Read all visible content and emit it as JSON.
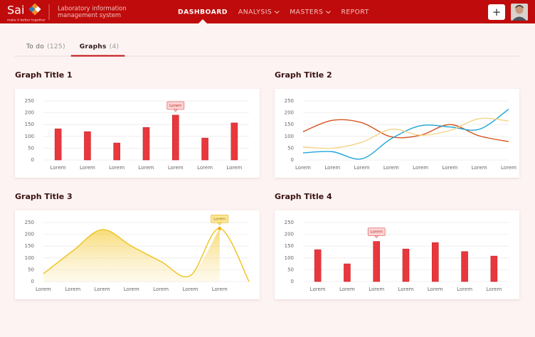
{
  "header": {
    "logo": "Sai",
    "tagline": "make it better together",
    "system_name": [
      "Laboratory information",
      "management system"
    ],
    "nav": [
      {
        "label": "DASHBOARD",
        "active": true
      },
      {
        "label": "ANALYSIS",
        "dropdown": true
      },
      {
        "label": "MASTERS",
        "dropdown": true
      },
      {
        "label": "REPORT"
      }
    ],
    "add_button": "+"
  },
  "tabs": [
    {
      "label": "To do",
      "count": "(125)"
    },
    {
      "label": "Graphs",
      "count": "(4)",
      "active": true
    }
  ],
  "chart_data": [
    {
      "type": "bar",
      "title": "Graph Title 1",
      "categories": [
        "Lorem",
        "Lorem",
        "Lorem",
        "Lorem",
        "Lorem",
        "Lorem",
        "Lorem"
      ],
      "values": [
        132,
        120,
        72,
        138,
        190,
        93,
        157
      ],
      "color": "#e8383d",
      "ylim": [
        0,
        250
      ],
      "yticks": [
        0,
        50,
        100,
        150,
        200,
        250
      ],
      "grid": true,
      "tooltip": {
        "index": 4,
        "text": "Lorem"
      }
    },
    {
      "type": "line",
      "title": "Graph Title 2",
      "categories": [
        "Lorem",
        "Lorem",
        "Lorem",
        "Lorem",
        "Lorem",
        "Lorem",
        "Lorem",
        "Lorem"
      ],
      "series": [
        {
          "color": "#d4521c",
          "values": [
            120,
            168,
            158,
            98,
            105,
            150,
            102,
            78
          ]
        },
        {
          "color": "#1ea7d6",
          "values": [
            30,
            35,
            5,
            90,
            145,
            140,
            130,
            215
          ]
        },
        {
          "color": "#f3d383",
          "values": [
            55,
            50,
            75,
            130,
            105,
            125,
            175,
            165
          ]
        }
      ],
      "ylim": [
        0,
        250
      ],
      "yticks": [
        0,
        50,
        100,
        150,
        200,
        250
      ],
      "grid": true
    },
    {
      "type": "area",
      "title": "Graph Title 3",
      "categories": [
        "Lorem",
        "Lorem",
        "Lorem",
        "Lorem",
        "Lorem",
        "Lorem",
        "Lorem",
        null
      ],
      "values": [
        33,
        130,
        220,
        150,
        85,
        25,
        225,
        0
      ],
      "color": "#eec21c",
      "ylim": [
        0,
        250
      ],
      "yticks": [
        0,
        50,
        100,
        150,
        200,
        250
      ],
      "grid": true,
      "tooltip": {
        "index": 6,
        "text": "Lorem"
      }
    },
    {
      "type": "bar",
      "title": "Graph Title 4",
      "categories": [
        "Lorem",
        "Lorem",
        "Lorem",
        "Lorem",
        "Lorem",
        "Lorem",
        "Lorem"
      ],
      "values": [
        135,
        75,
        170,
        138,
        165,
        127,
        108
      ],
      "color": "#e8383d",
      "ylim": [
        0,
        250
      ],
      "yticks": [
        0,
        50,
        100,
        150,
        200,
        250
      ],
      "grid": true,
      "tooltip": {
        "index": 2,
        "text": "Lorem"
      }
    }
  ]
}
